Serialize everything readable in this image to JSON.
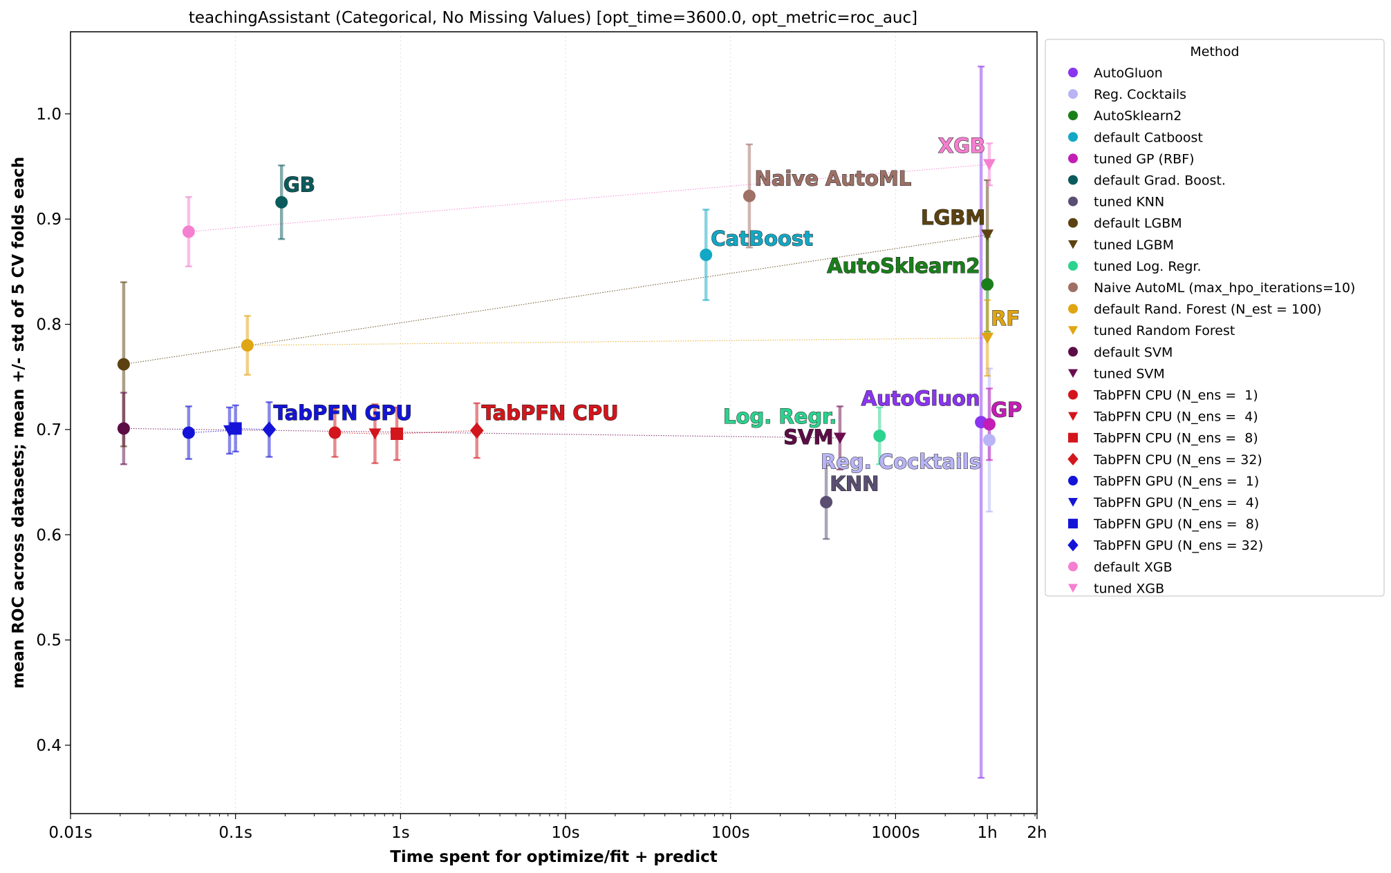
{
  "chart_data": {
    "type": "scatter",
    "title": "teachingAssistant (Categorical, No Missing Values) [opt_time=3600.0, opt_metric=roc_auc]",
    "xlabel": "Time spent for optimize/fit + predict",
    "ylabel": "mean ROC across datasets; mean +/- std of 5 CV folds each",
    "x_scale": "log",
    "xlim": [
      0.01,
      7200
    ],
    "ylim": [
      0.335,
      1.078
    ],
    "x_ticks": [
      {
        "value": 0.01,
        "label": "0.01s"
      },
      {
        "value": 0.1,
        "label": "0.1s"
      },
      {
        "value": 1,
        "label": "1s"
      },
      {
        "value": 10,
        "label": "10s"
      },
      {
        "value": 100,
        "label": "100s"
      },
      {
        "value": 1000,
        "label": "1000s"
      },
      {
        "value": 3600,
        "label": "1h"
      },
      {
        "value": 7200,
        "label": "2h"
      }
    ],
    "y_ticks": [
      {
        "value": 0.4,
        "label": "0.4"
      },
      {
        "value": 0.5,
        "label": "0.5"
      },
      {
        "value": 0.6,
        "label": "0.6"
      },
      {
        "value": 0.7,
        "label": "0.7"
      },
      {
        "value": 0.8,
        "label": "0.8"
      },
      {
        "value": 0.9,
        "label": "0.9"
      },
      {
        "value": 1.0,
        "label": "1.0"
      }
    ],
    "grid": "vertical-dotted",
    "legend": {
      "title": "Method",
      "placement": "outside-right"
    },
    "series": [
      {
        "name": "AutoGluon",
        "color": "#8a35f0",
        "marker": "circle",
        "x": 3300,
        "y": 0.707,
        "err": 0.338
      },
      {
        "name": "Reg. Cocktails",
        "color": "#b8b4f6",
        "marker": "circle",
        "x": 3700,
        "y": 0.69,
        "err": 0.068
      },
      {
        "name": "AutoSklearn2",
        "color": "#1a7f1a",
        "marker": "circle",
        "x": 3600,
        "y": 0.838,
        "err": 0.045
      },
      {
        "name": "default Catboost",
        "color": "#12a8c5",
        "marker": "circle",
        "x": 71,
        "y": 0.866,
        "err": 0.043
      },
      {
        "name": "tuned GP (RBF)",
        "color": "#c21eb5",
        "marker": "circle",
        "x": 3700,
        "y": 0.705,
        "err": 0.034
      },
      {
        "name": "default Grad. Boost.",
        "color": "#0b5a5c",
        "marker": "circle",
        "x": 0.19,
        "y": 0.916,
        "err": 0.035
      },
      {
        "name": "tuned KNN",
        "color": "#5a4e72",
        "marker": "circle",
        "x": 380,
        "y": 0.631,
        "err": 0.035
      },
      {
        "name": "default LGBM",
        "color": "#5b4210",
        "marker": "circle",
        "x": 0.021,
        "y": 0.762,
        "err": 0.078
      },
      {
        "name": "tuned LGBM",
        "color": "#5b4210",
        "marker": "triangle-down",
        "x": 3600,
        "y": 0.885,
        "err": 0.052
      },
      {
        "name": "tuned Log. Regr.",
        "color": "#2bd38e",
        "marker": "circle",
        "x": 800,
        "y": 0.694,
        "err": 0.027
      },
      {
        "name": "Naive AutoML (max_hpo_iterations=10)",
        "color": "#9e7066",
        "marker": "circle",
        "x": 130,
        "y": 0.922,
        "err": 0.049
      },
      {
        "name": "default Rand. Forest (N_est = 100)",
        "color": "#e0a512",
        "marker": "circle",
        "x": 0.118,
        "y": 0.78,
        "err": 0.028
      },
      {
        "name": "tuned Random Forest",
        "color": "#e0a512",
        "marker": "triangle-down",
        "x": 3600,
        "y": 0.787,
        "err": 0.036
      },
      {
        "name": "default SVM",
        "color": "#5c0d46",
        "marker": "circle",
        "x": 0.021,
        "y": 0.701,
        "err": 0.034
      },
      {
        "name": "tuned SVM",
        "color": "#6b0c4f",
        "marker": "triangle-down",
        "x": 460,
        "y": 0.692,
        "err": 0.03
      },
      {
        "name": "TabPFN CPU (N_ens =  1)",
        "color": "#d3151c",
        "marker": "circle",
        "x": 0.4,
        "y": 0.697,
        "err": 0.023
      },
      {
        "name": "TabPFN CPU (N_ens =  4)",
        "color": "#d3151c",
        "marker": "triangle-down",
        "x": 0.7,
        "y": 0.696,
        "err": 0.028
      },
      {
        "name": "TabPFN CPU (N_ens =  8)",
        "color": "#d3151c",
        "marker": "square",
        "x": 0.95,
        "y": 0.696,
        "err": 0.025
      },
      {
        "name": "TabPFN CPU (N_ens = 32)",
        "color": "#d3151c",
        "marker": "diamond",
        "x": 2.9,
        "y": 0.699,
        "err": 0.026
      },
      {
        "name": "TabPFN GPU (N_ens =  1)",
        "color": "#1414d8",
        "marker": "circle",
        "x": 0.052,
        "y": 0.697,
        "err": 0.025
      },
      {
        "name": "TabPFN GPU (N_ens =  4)",
        "color": "#1414d8",
        "marker": "triangle-down",
        "x": 0.092,
        "y": 0.699,
        "err": 0.022
      },
      {
        "name": "TabPFN GPU (N_ens =  8)",
        "color": "#1414d8",
        "marker": "square",
        "x": 0.1,
        "y": 0.701,
        "err": 0.022
      },
      {
        "name": "TabPFN GPU (N_ens = 32)",
        "color": "#1414d8",
        "marker": "diamond",
        "x": 0.16,
        "y": 0.7,
        "err": 0.026
      },
      {
        "name": "default XGB",
        "color": "#f57fd0",
        "marker": "circle",
        "x": 0.052,
        "y": 0.888,
        "err": 0.033
      },
      {
        "name": "tuned XGB",
        "color": "#f57fd0",
        "marker": "triangle-down",
        "x": 3700,
        "y": 0.952,
        "err": 0.02
      }
    ],
    "connectors": [
      {
        "color": "#f57fd0",
        "points": [
          [
            0.052,
            0.888
          ],
          [
            3700,
            0.952
          ]
        ]
      },
      {
        "color": "#5b4210",
        "points": [
          [
            0.021,
            0.762
          ],
          [
            3600,
            0.885
          ]
        ]
      },
      {
        "color": "#e0a512",
        "points": [
          [
            0.118,
            0.78
          ],
          [
            3600,
            0.787
          ]
        ]
      },
      {
        "color": "#1414d8",
        "points": [
          [
            0.052,
            0.697
          ],
          [
            0.092,
            0.699
          ],
          [
            0.1,
            0.701
          ],
          [
            0.16,
            0.7
          ]
        ]
      },
      {
        "color": "#d3151c",
        "points": [
          [
            0.4,
            0.697
          ],
          [
            0.7,
            0.696
          ],
          [
            0.95,
            0.696
          ],
          [
            2.9,
            0.699
          ]
        ]
      },
      {
        "color": "#6b0c4f",
        "points": [
          [
            0.021,
            0.701
          ],
          [
            460,
            0.692
          ]
        ]
      }
    ],
    "annotations": [
      {
        "text": "GB",
        "color": "#0b5a5c",
        "x": 0.195,
        "y": 0.926,
        "anchor": "start"
      },
      {
        "text": "Naive AutoML",
        "color": "#9e7066",
        "x": 140,
        "y": 0.932,
        "anchor": "start"
      },
      {
        "text": "CatBoost",
        "color": "#12a8c5",
        "x": 76,
        "y": 0.875,
        "anchor": "start"
      },
      {
        "text": "XGB",
        "color": "#f57fd0",
        "x": 3500,
        "y": 0.963,
        "anchor": "end"
      },
      {
        "text": "LGBM",
        "color": "#5b4210",
        "x": 3500,
        "y": 0.895,
        "anchor": "end"
      },
      {
        "text": "AutoSklearn2",
        "color": "#1a7f1a",
        "x": 3250,
        "y": 0.849,
        "anchor": "end"
      },
      {
        "text": "RF",
        "color": "#e0a512",
        "x": 3780,
        "y": 0.799,
        "anchor": "start"
      },
      {
        "text": "TabPFN GPU",
        "color": "#1414d8",
        "x": 0.17,
        "y": 0.709,
        "anchor": "start"
      },
      {
        "text": "TabPFN CPU",
        "color": "#d3151c",
        "x": 3.1,
        "y": 0.709,
        "anchor": "start"
      },
      {
        "text": "Log. Regr.",
        "color": "#2bd38e",
        "x": 440,
        "y": 0.706,
        "anchor": "end"
      },
      {
        "text": "AutoGluon",
        "color": "#8a35f0",
        "x": 3250,
        "y": 0.723,
        "anchor": "end"
      },
      {
        "text": "GP",
        "color": "#c21eb5",
        "x": 3780,
        "y": 0.712,
        "anchor": "start"
      },
      {
        "text": "SVM",
        "color": "#5c0d46",
        "x": 420,
        "y": 0.686,
        "anchor": "end"
      },
      {
        "text": "Reg. Cocktails",
        "color": "#b8b4f6",
        "x": 3300,
        "y": 0.663,
        "anchor": "end"
      },
      {
        "text": "KNN",
        "color": "#5a4e72",
        "x": 400,
        "y": 0.642,
        "anchor": "start"
      }
    ]
  }
}
